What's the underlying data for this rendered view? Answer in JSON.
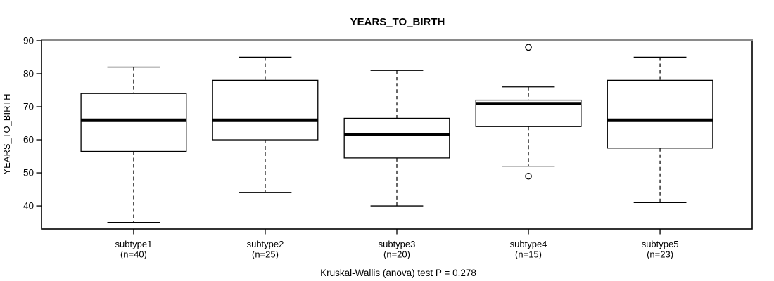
{
  "chart_data": {
    "type": "boxplot",
    "title": "YEARS_TO_BIRTH",
    "ylabel": "YEARS_TO_BIRTH",
    "xlabel": "",
    "annotation": "Kruskal-Wallis (anova) test P = 0.278",
    "ylim": [
      33,
      90.2
    ],
    "yticks": [
      40,
      50,
      60,
      70,
      80,
      90
    ],
    "grid": false,
    "legend": "none",
    "categories": [
      "subtype1",
      "subtype2",
      "subtype3",
      "subtype4",
      "subtype5"
    ],
    "category_counts": [
      "(n=40)",
      "(n=25)",
      "(n=20)",
      "(n=15)",
      "(n=23)"
    ],
    "series": [
      {
        "name": "subtype1",
        "n": 40,
        "whisker_low": 35,
        "q1": 56.5,
        "median": 66,
        "q3": 74,
        "whisker_high": 82,
        "outliers": []
      },
      {
        "name": "subtype2",
        "n": 25,
        "whisker_low": 44,
        "q1": 60,
        "median": 66,
        "q3": 78,
        "whisker_high": 85,
        "outliers": []
      },
      {
        "name": "subtype3",
        "n": 20,
        "whisker_low": 40,
        "q1": 54.5,
        "median": 61.5,
        "q3": 66.5,
        "whisker_high": 81,
        "outliers": []
      },
      {
        "name": "subtype4",
        "n": 15,
        "whisker_low": 52,
        "q1": 64,
        "median": 71,
        "q3": 72,
        "whisker_high": 76,
        "outliers": [
          88,
          49
        ]
      },
      {
        "name": "subtype5",
        "n": 23,
        "whisker_low": 41,
        "q1": 57.5,
        "median": 66,
        "q3": 78,
        "whisker_high": 85,
        "outliers": []
      }
    ],
    "colors": {
      "stroke": "#000000",
      "median": "#000000",
      "frame": "#000000",
      "frame_top": "#8a8a8a",
      "background": "#ffffff"
    }
  }
}
